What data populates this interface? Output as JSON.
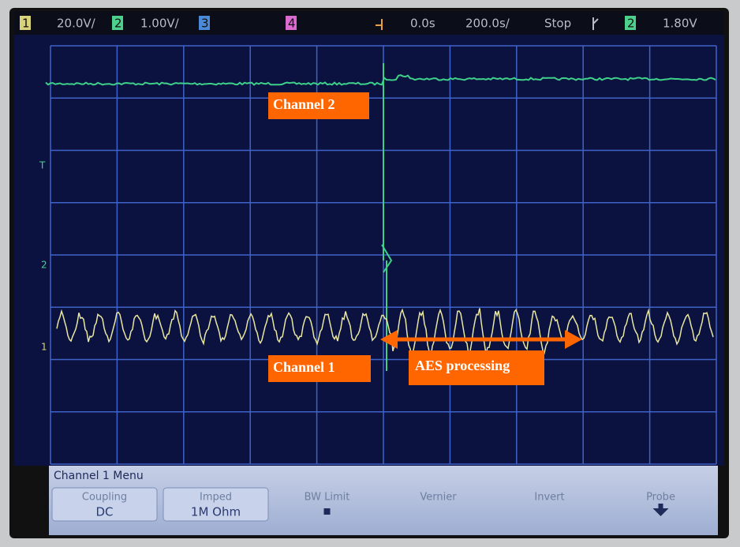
{
  "status_bar": {
    "ch1_label": "1",
    "ch1_scale": "20.0V/",
    "ch2_label": "2",
    "ch2_scale": "1.00V/",
    "ch3_label": "3",
    "ch4_label": "4",
    "time_delay": "0.0s",
    "time_scale": "200.0s/",
    "run_state": "Stop",
    "trigger_source": "2",
    "trigger_level": "1.80V"
  },
  "markers": {
    "trigger": "T",
    "ch2": "2",
    "ch1": "1"
  },
  "annotations": {
    "channel_2": "Channel 2",
    "channel_1": "Channel 1",
    "aes": "AES processing"
  },
  "menu": {
    "title": "Channel 1 Menu",
    "softkeys": [
      {
        "label": "Coupling",
        "value": "DC"
      },
      {
        "label": "Imped",
        "value": "1M Ohm"
      },
      {
        "label": "BW Limit"
      },
      {
        "label": "Vernier"
      },
      {
        "label": "Invert"
      },
      {
        "label": "Probe"
      }
    ]
  }
}
